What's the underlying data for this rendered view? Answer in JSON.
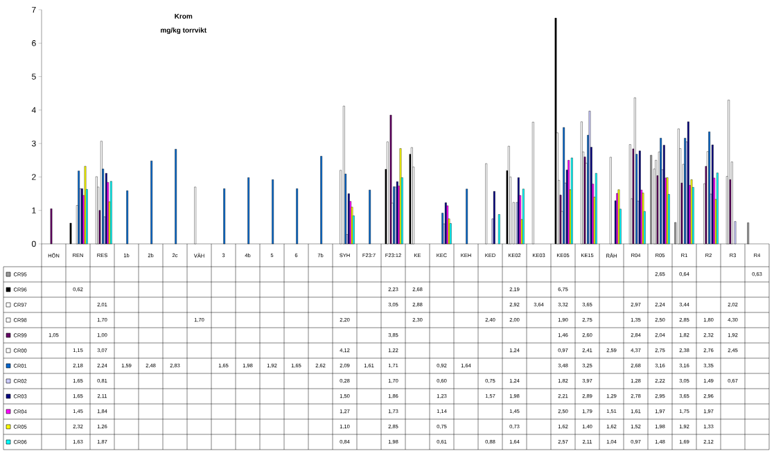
{
  "chart_data": {
    "type": "bar",
    "title": "Krom",
    "subtitle": "mg/kg torrvikt",
    "categories": [
      "HÖN",
      "REN",
      "RES",
      "1b",
      "2b",
      "2c",
      "VÄH",
      "3",
      "4b",
      "5",
      "6",
      "7b",
      "SYH",
      "F23:7",
      "F23:12",
      "KE",
      "KEC",
      "KEH",
      "KED",
      "KE02",
      "KE03",
      "KE05",
      "KE15",
      "RÅH",
      "R04",
      "R05",
      "R1",
      "R2",
      "R3",
      "R4"
    ],
    "ylim": [
      0,
      7
    ],
    "yticks": [
      0,
      1,
      2,
      3,
      4,
      5,
      6,
      7
    ],
    "legend": "bottom",
    "series": [
      {
        "name": "CR95",
        "color": "#999999",
        "values": [
          null,
          null,
          null,
          null,
          null,
          null,
          null,
          null,
          null,
          null,
          null,
          null,
          null,
          null,
          null,
          null,
          null,
          null,
          null,
          null,
          null,
          null,
          null,
          null,
          null,
          2.65,
          0.64,
          null,
          null,
          0.63
        ],
        "value_labels": [
          null,
          null,
          null,
          null,
          null,
          null,
          null,
          null,
          null,
          null,
          null,
          null,
          null,
          null,
          null,
          null,
          null,
          null,
          null,
          null,
          null,
          null,
          null,
          null,
          null,
          "2,65",
          "0,64",
          null,
          null,
          "0,63"
        ]
      },
      {
        "name": "CR96",
        "color": "#000000",
        "values": [
          null,
          0.62,
          null,
          null,
          null,
          null,
          null,
          null,
          null,
          null,
          null,
          null,
          null,
          null,
          2.23,
          2.68,
          null,
          null,
          null,
          2.19,
          null,
          6.75,
          null,
          null,
          null,
          null,
          null,
          null,
          null,
          null
        ],
        "value_labels": [
          null,
          "0,62",
          null,
          null,
          null,
          null,
          null,
          null,
          null,
          null,
          null,
          null,
          null,
          null,
          "2,23",
          "2,68",
          null,
          null,
          null,
          "2,19",
          null,
          "6,75",
          null,
          null,
          null,
          null,
          null,
          null,
          null,
          null
        ]
      },
      {
        "name": "CR97",
        "color": "#ffffff",
        "values": [
          null,
          null,
          2.01,
          null,
          null,
          null,
          null,
          null,
          null,
          null,
          null,
          null,
          null,
          null,
          3.05,
          2.88,
          null,
          null,
          null,
          2.92,
          3.64,
          3.32,
          3.65,
          null,
          2.97,
          2.24,
          3.44,
          null,
          2.02,
          null
        ],
        "value_labels": [
          null,
          null,
          "2,01",
          null,
          null,
          null,
          null,
          null,
          null,
          null,
          null,
          null,
          null,
          null,
          "3,05",
          "2,88",
          null,
          null,
          null,
          "2,92",
          "3,64",
          "3,32",
          "3,65",
          null,
          "2,97",
          "2,24",
          "3,44",
          null,
          "2,02",
          null
        ]
      },
      {
        "name": "CR98",
        "color": "#ffffff",
        "values": [
          null,
          null,
          1.7,
          null,
          null,
          null,
          1.7,
          null,
          null,
          null,
          null,
          null,
          2.2,
          null,
          null,
          2.3,
          null,
          null,
          2.4,
          2.0,
          null,
          1.9,
          2.75,
          null,
          1.35,
          2.5,
          2.85,
          1.8,
          4.3,
          null
        ],
        "value_labels": [
          null,
          null,
          "1,70",
          null,
          null,
          null,
          "1,70",
          null,
          null,
          null,
          null,
          null,
          "2,20",
          null,
          null,
          "2,30",
          null,
          null,
          "2,40",
          "2,00",
          null,
          "1,90",
          "2,75",
          null,
          "1,35",
          "2,50",
          "2,85",
          "1,80",
          "4,30",
          null
        ]
      },
      {
        "name": "CR99",
        "color": "#660066",
        "values": [
          1.05,
          null,
          1.0,
          null,
          null,
          null,
          null,
          null,
          null,
          null,
          null,
          null,
          null,
          null,
          3.85,
          null,
          null,
          null,
          null,
          null,
          null,
          1.46,
          2.6,
          null,
          2.84,
          2.04,
          1.82,
          2.32,
          1.92,
          null
        ],
        "value_labels": [
          "1,05",
          null,
          "1,00",
          null,
          null,
          null,
          null,
          null,
          null,
          null,
          null,
          null,
          null,
          null,
          "3,85",
          null,
          null,
          null,
          null,
          null,
          null,
          "1,46",
          "2,60",
          null,
          "2,84",
          "2,04",
          "1,82",
          "2,32",
          "1,92",
          null
        ]
      },
      {
        "name": "CR00",
        "color": "#ffffff",
        "values": [
          null,
          1.15,
          3.07,
          null,
          null,
          null,
          null,
          null,
          null,
          null,
          null,
          null,
          4.12,
          null,
          1.22,
          null,
          null,
          null,
          null,
          1.24,
          null,
          0.97,
          2.41,
          2.59,
          4.37,
          2.75,
          2.38,
          2.76,
          2.45,
          null
        ],
        "value_labels": [
          null,
          "1,15",
          "3,07",
          null,
          null,
          null,
          null,
          null,
          null,
          null,
          null,
          null,
          "4,12",
          null,
          "1,22",
          null,
          null,
          null,
          null,
          "1,24",
          null,
          "0,97",
          "2,41",
          "2,59",
          "4,37",
          "2,75",
          "2,38",
          "2,76",
          "2,45",
          null
        ]
      },
      {
        "name": "CR01",
        "color": "#0066cc",
        "values": [
          null,
          2.18,
          2.24,
          1.59,
          2.48,
          2.83,
          null,
          1.65,
          1.98,
          1.92,
          1.65,
          2.62,
          2.09,
          1.61,
          1.71,
          null,
          0.92,
          1.64,
          null,
          null,
          null,
          3.48,
          3.25,
          null,
          2.68,
          3.16,
          3.16,
          3.35,
          null,
          null
        ],
        "value_labels": [
          null,
          "2,18",
          "2,24",
          "1,59",
          "2,48",
          "2,83",
          null,
          "1,65",
          "1,98",
          "1,92",
          "1,65",
          "2,62",
          "2,09",
          "1,61",
          "1,71",
          null,
          "0,92",
          "1,64",
          null,
          null,
          null,
          "3,48",
          "3,25",
          null,
          "2,68",
          "3,16",
          "3,16",
          "3,35",
          null,
          null
        ]
      },
      {
        "name": "CR02",
        "color": "#ccccff",
        "values": [
          null,
          1.65,
          0.81,
          null,
          null,
          null,
          null,
          null,
          null,
          null,
          null,
          null,
          0.28,
          null,
          1.7,
          null,
          0.6,
          null,
          0.75,
          1.24,
          null,
          1.82,
          3.97,
          null,
          1.28,
          2.22,
          3.05,
          1.49,
          0.67,
          null
        ],
        "value_labels": [
          null,
          "1,65",
          "0,81",
          null,
          null,
          null,
          null,
          null,
          null,
          null,
          null,
          null,
          "0,28",
          null,
          "1,70",
          null,
          "0,60",
          null,
          "0,75",
          "1,24",
          null,
          "1,82",
          "3,97",
          null,
          "1,28",
          "2,22",
          "3,05",
          "1,49",
          "0,67",
          null
        ]
      },
      {
        "name": "CR03",
        "color": "#000080",
        "values": [
          null,
          1.65,
          2.11,
          null,
          null,
          null,
          null,
          null,
          null,
          null,
          null,
          null,
          1.5,
          null,
          1.86,
          null,
          1.23,
          null,
          1.57,
          1.98,
          null,
          2.21,
          2.89,
          1.29,
          2.78,
          2.95,
          3.65,
          2.96,
          null,
          null
        ],
        "value_labels": [
          null,
          "1,65",
          "2,11",
          null,
          null,
          null,
          null,
          null,
          null,
          null,
          null,
          null,
          "1,50",
          null,
          "1,86",
          null,
          "1,23",
          null,
          "1,57",
          "1,98",
          null,
          "2,21",
          "2,89",
          "1,29",
          "2,78",
          "2,95",
          "3,65",
          "2,96",
          null,
          null
        ]
      },
      {
        "name": "CR04",
        "color": "#ff00ff",
        "values": [
          null,
          1.45,
          1.84,
          null,
          null,
          null,
          null,
          null,
          null,
          null,
          null,
          null,
          1.27,
          null,
          1.73,
          null,
          1.14,
          null,
          null,
          1.45,
          null,
          2.5,
          1.79,
          1.51,
          1.61,
          1.97,
          1.75,
          1.97,
          null,
          null
        ],
        "value_labels": [
          null,
          "1,45",
          "1,84",
          null,
          null,
          null,
          null,
          null,
          null,
          null,
          null,
          null,
          "1,27",
          null,
          "1,73",
          null,
          "1,14",
          null,
          null,
          "1,45",
          null,
          "2,50",
          "1,79",
          "1,51",
          "1,61",
          "1,97",
          "1,75",
          "1,97",
          null,
          null
        ]
      },
      {
        "name": "CR05",
        "color": "#ffff00",
        "values": [
          null,
          2.32,
          1.26,
          null,
          null,
          null,
          null,
          null,
          null,
          null,
          null,
          null,
          1.1,
          null,
          2.85,
          null,
          0.75,
          null,
          null,
          0.73,
          null,
          1.62,
          1.4,
          1.62,
          1.52,
          1.98,
          1.92,
          1.33,
          null,
          null
        ],
        "value_labels": [
          null,
          "2,32",
          "1,26",
          null,
          null,
          null,
          null,
          null,
          null,
          null,
          null,
          null,
          "1,10",
          null,
          "2,85",
          null,
          "0,75",
          null,
          null,
          "0,73",
          null,
          "1,62",
          "1,40",
          "1,62",
          "1,52",
          "1,98",
          "1,92",
          "1,33",
          null,
          null
        ]
      },
      {
        "name": "CR06",
        "color": "#00ffff",
        "values": [
          null,
          1.63,
          1.87,
          null,
          null,
          null,
          null,
          null,
          null,
          null,
          null,
          null,
          0.84,
          null,
          1.98,
          null,
          0.61,
          null,
          0.88,
          1.64,
          null,
          2.57,
          2.11,
          1.04,
          0.97,
          1.48,
          1.69,
          2.12,
          null,
          null
        ],
        "value_labels": [
          null,
          "1,63",
          "1,87",
          null,
          null,
          null,
          null,
          null,
          null,
          null,
          null,
          null,
          "0,84",
          null,
          "1,98",
          null,
          "0,61",
          null,
          "0,88",
          "1,64",
          null,
          "2,57",
          "2,11",
          "1,04",
          "0,97",
          "1,48",
          "1,69",
          "2,12",
          null,
          null
        ]
      }
    ]
  }
}
